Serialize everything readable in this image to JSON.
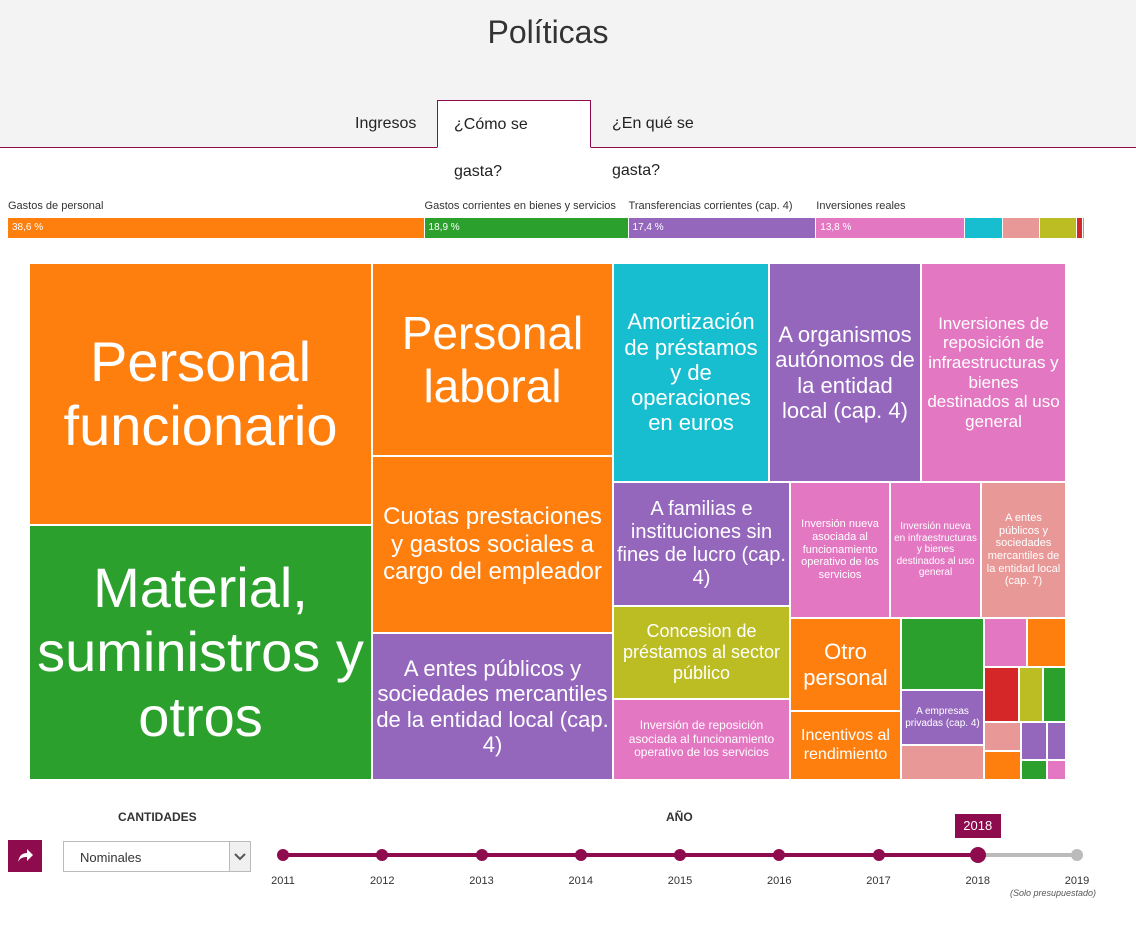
{
  "header": {
    "title": "Políticas"
  },
  "tabs": [
    "Ingresos",
    "¿Cómo se gasta?",
    "¿En qué se gasta?"
  ],
  "active_tab": 1,
  "summary_bar": {
    "segments": [
      {
        "label": "Gastos de personal",
        "value": 38.6,
        "value_label": "38,6 %",
        "color": "#ff7f0e"
      },
      {
        "label": "Gastos corrientes en bienes y servicios",
        "value": 18.9,
        "value_label": "18,9 %",
        "color": "#2ca02c"
      },
      {
        "label": "Transferencias corrientes (cap. 4)",
        "value": 17.4,
        "value_label": "17,4 %",
        "color": "#9467bd"
      },
      {
        "label": "Inversiones reales",
        "value": 13.8,
        "value_label": "13,8 %",
        "color": "#e377c2"
      },
      {
        "value": 3.5,
        "color": "#17becf"
      },
      {
        "value": 3.4,
        "color": "#e89896"
      },
      {
        "value": 3.5,
        "color": "#bcbd22"
      },
      {
        "value": 0.5,
        "color": "#d62728"
      },
      {
        "value": 0.2,
        "color": "#e377c2"
      }
    ]
  },
  "treemap": {
    "tiles": [
      {
        "label": "Personal funcionario",
        "color": "#ff7f0e"
      },
      {
        "label": "Material, suministros y otros",
        "color": "#2ca02c"
      },
      {
        "label": "Personal laboral",
        "color": "#ff7f0e"
      },
      {
        "label": "Cuotas prestaciones y gastos sociales a cargo del empleador",
        "color": "#ff7f0e"
      },
      {
        "label": "A entes públicos y sociedades mercantiles de la entidad local (cap. 4)",
        "color": "#9467bd"
      },
      {
        "label": "Amortización de préstamos y de operaciones en euros",
        "color": "#17becf"
      },
      {
        "label": "A organismos autónomos de la entidad local (cap. 4)",
        "color": "#9467bd"
      },
      {
        "label": "Inversiones de reposición de infraestructuras y bienes destinados al uso general",
        "color": "#e377c2"
      },
      {
        "label": "A familias e instituciones sin fines de lucro (cap. 4)",
        "color": "#9467bd"
      },
      {
        "label": "Inversión nueva asociada al funcionamiento operativo de los servicios",
        "color": "#e377c2"
      },
      {
        "label": "Inversión nueva en infraestructuras y bienes destinados al uso general",
        "color": "#e377c2"
      },
      {
        "label": "A entes públicos y sociedades mercantiles de la entidad local (cap. 7)",
        "color": "#e89896"
      },
      {
        "label": "Concesion de préstamos al sector público",
        "color": "#bcbd22"
      },
      {
        "label": "Inversión de reposición asociada al funcionamiento operativo de los servicios",
        "color": "#e377c2"
      },
      {
        "label": "Otro personal",
        "color": "#ff7f0e"
      },
      {
        "label": "Incentivos al rendimiento",
        "color": "#ff7f0e"
      },
      {
        "color": "#2ca02c"
      },
      {
        "label": "A empresas privadas (cap. 4)",
        "color": "#9467bd"
      },
      {
        "color": "#e89896"
      },
      {
        "color": "#e377c2"
      },
      {
        "color": "#ff7f0e"
      },
      {
        "color": "#d62728"
      },
      {
        "color": "#bcbd22"
      },
      {
        "color": "#2ca02c"
      },
      {
        "color": "#e89896"
      },
      {
        "color": "#9467bd"
      },
      {
        "color": "#9467bd"
      },
      {
        "color": "#ff7f0e"
      },
      {
        "color": "#2ca02c"
      },
      {
        "color": "#e377c2"
      }
    ]
  },
  "controls": {
    "amounts_label": "CANTIDADES",
    "amounts_select": "Nominales",
    "year_label": "AÑO",
    "years": [
      "2011",
      "2012",
      "2013",
      "2014",
      "2015",
      "2016",
      "2017",
      "2018",
      "2019"
    ],
    "selected_year": 7,
    "note": "(Solo presupuestado)"
  }
}
